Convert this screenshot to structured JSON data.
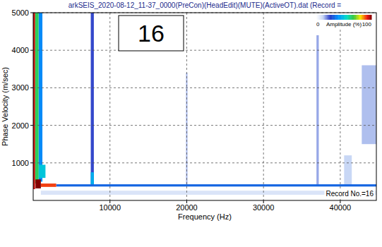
{
  "chart_data": {
    "type": "heatmap",
    "title": "arkSEIS_2020-08-12_11-37_0000(PreCon)(HeadEdit)(MUTE)(ActiveOT).dat (Record =",
    "x_label": "Frequency (Hz)",
    "y_label": "Phase Velocity (m/sec)",
    "xlim": [
      0,
      44700
    ],
    "xticks": [
      10000,
      20000,
      30000,
      40000
    ],
    "ylim": [
      0,
      5000
    ],
    "yticks": [
      1000,
      2000,
      3000,
      4000,
      5000
    ],
    "grid": true,
    "annotations": [
      "16",
      "Record No.=16"
    ],
    "colorbar": {
      "label": "Amplitude (%)",
      "range": [
        0,
        100
      ],
      "ticks": [
        0,
        100
      ]
    },
    "cells": [
      {
        "x": [
          1000,
          44700
        ],
        "y": [
          150,
          260
        ],
        "value": 8
      },
      {
        "x": [
          42800,
          44700
        ],
        "y": [
          1500,
          3600
        ],
        "value": 14
      },
      {
        "x": [
          40500,
          41500
        ],
        "y": [
          400,
          1200
        ],
        "value": 12
      },
      {
        "x": [
          36900,
          37200
        ],
        "y": [
          420,
          4400
        ],
        "value": 16
      },
      {
        "x": [
          19900,
          20100
        ],
        "y": [
          420,
          3400
        ],
        "value": 14
      },
      {
        "x": [
          7500,
          7900
        ],
        "y": [
          420,
          5000
        ],
        "value": 24
      },
      {
        "x": [
          7500,
          7900
        ],
        "y": [
          420,
          750
        ],
        "value": 45
      },
      {
        "x": [
          700,
          1200
        ],
        "y": [
          500,
          5000
        ],
        "value": 38
      },
      {
        "x": [
          700,
          1600
        ],
        "y": [
          600,
          950
        ],
        "value": 50
      },
      {
        "x": [
          250,
          700
        ],
        "y": [
          450,
          5000
        ],
        "value": 65
      },
      {
        "x": [
          0,
          250
        ],
        "y": [
          300,
          5000
        ],
        "value": 95
      },
      {
        "x": [
          3000,
          44700
        ],
        "y": [
          370,
          430
        ],
        "value": 32
      },
      {
        "x": [
          1000,
          3000
        ],
        "y": [
          360,
          450
        ],
        "value": 90
      },
      {
        "x": [
          300,
          1000
        ],
        "y": [
          320,
          560
        ],
        "value": 100
      }
    ]
  }
}
